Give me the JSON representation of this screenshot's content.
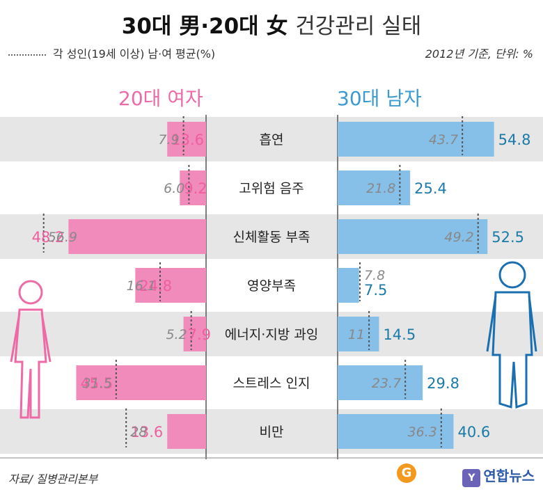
{
  "title": {
    "bold": "30대 男·20대 女",
    "rest": "건강관리 실태"
  },
  "legend_label": "각 성인(19세 이상) 남·여 평균(%)",
  "basis": "2012년 기준, 단위: %",
  "women_title": "20대 여자",
  "men_title": "30대 남자",
  "source": "자료/ 질병관리본부",
  "logo_text": "연합뉴스",
  "colors": {
    "women": "#f08bbb",
    "men": "#86bfe8",
    "stripe": "#e6e6e6"
  },
  "chart_data": {
    "type": "bar",
    "categories": [
      "흡연",
      "고위험 음주",
      "신체활동 부족",
      "영양부족",
      "에너지·지방 과잉",
      "스트레스 인지",
      "비만"
    ],
    "series": [
      {
        "name": "20대 여자",
        "values": [
          13.6,
          9.2,
          48.2,
          24.8,
          7.9,
          45.5,
          13.6
        ],
        "labels": [
          "13.6",
          "9.2",
          "48.2",
          "24.8",
          "7.9",
          "45.5",
          "13.6"
        ]
      },
      {
        "name": "30대 남자",
        "values": [
          54.8,
          25.4,
          52.5,
          7.5,
          14.5,
          29.8,
          40.6
        ],
        "labels": [
          "54.8",
          "25.4",
          "52.5",
          "7.5",
          "14.5",
          "29.8",
          "40.6"
        ]
      }
    ],
    "averages": {
      "women": {
        "values": [
          7.9,
          6.0,
          56.9,
          16.1,
          5.2,
          31.5,
          28
        ],
        "labels": [
          "7.9",
          "6.0",
          "56.9",
          "16.1",
          "5.2",
          "31.5",
          "28"
        ]
      },
      "men": {
        "values": [
          43.7,
          21.8,
          49.2,
          7.8,
          11,
          23.7,
          36.3
        ],
        "labels": [
          "43.7",
          "21.8",
          "49.2",
          "7.8",
          "11",
          "23.7",
          "36.3"
        ]
      }
    }
  }
}
